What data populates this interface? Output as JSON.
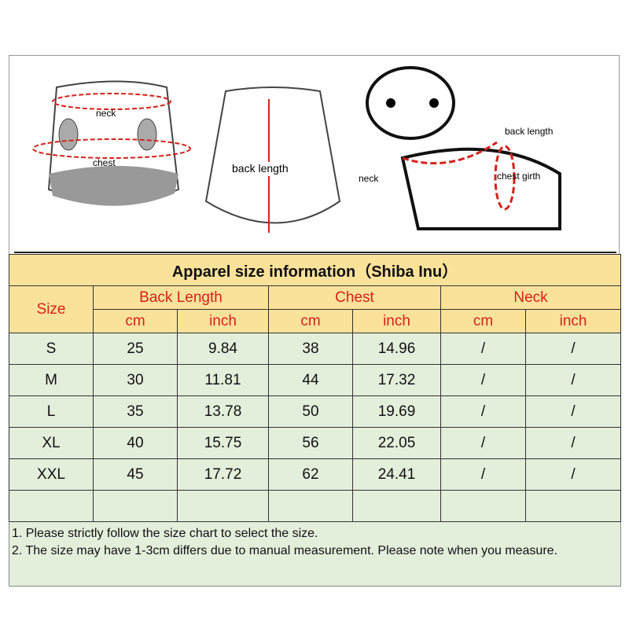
{
  "illustrations": {
    "front_labels": {
      "neck": "neck",
      "chest": "chest"
    },
    "back_label": "back length",
    "dog_labels": {
      "back_length": "back length",
      "neck": "neck",
      "chest_girth": "chest girth"
    }
  },
  "table": {
    "title": "Apparel  size  information（Shiba Inu）",
    "size_header": "Size",
    "groups": [
      "Back Length",
      "Chest",
      "Neck"
    ],
    "units": [
      "cm",
      "inch",
      "cm",
      "inch",
      "cm",
      "inch"
    ],
    "rows": [
      [
        "S",
        "25",
        "9.84",
        "38",
        "14.96",
        "/",
        "/"
      ],
      [
        "M",
        "30",
        "11.81",
        "44",
        "17.32",
        "/",
        "/"
      ],
      [
        "L",
        "35",
        "13.78",
        "50",
        "19.69",
        "/",
        "/"
      ],
      [
        "XL",
        "40",
        "15.75",
        "56",
        "22.05",
        "/",
        "/"
      ],
      [
        "XXL",
        "45",
        "17.72",
        "62",
        "24.41",
        "/",
        "/"
      ],
      [
        "",
        "",
        "",
        "",
        "",
        "",
        ""
      ]
    ],
    "notes": [
      "1. Please strictly follow the size chart  to select the size.",
      "2. The size may have 1-3cm differs due to manual measurement. Please note when you measure."
    ]
  },
  "colors": {
    "header_bg": "#fbe29a",
    "header_text": "#d4221a",
    "row_bg": "#e3eedb",
    "arrow": "#d4221a"
  }
}
